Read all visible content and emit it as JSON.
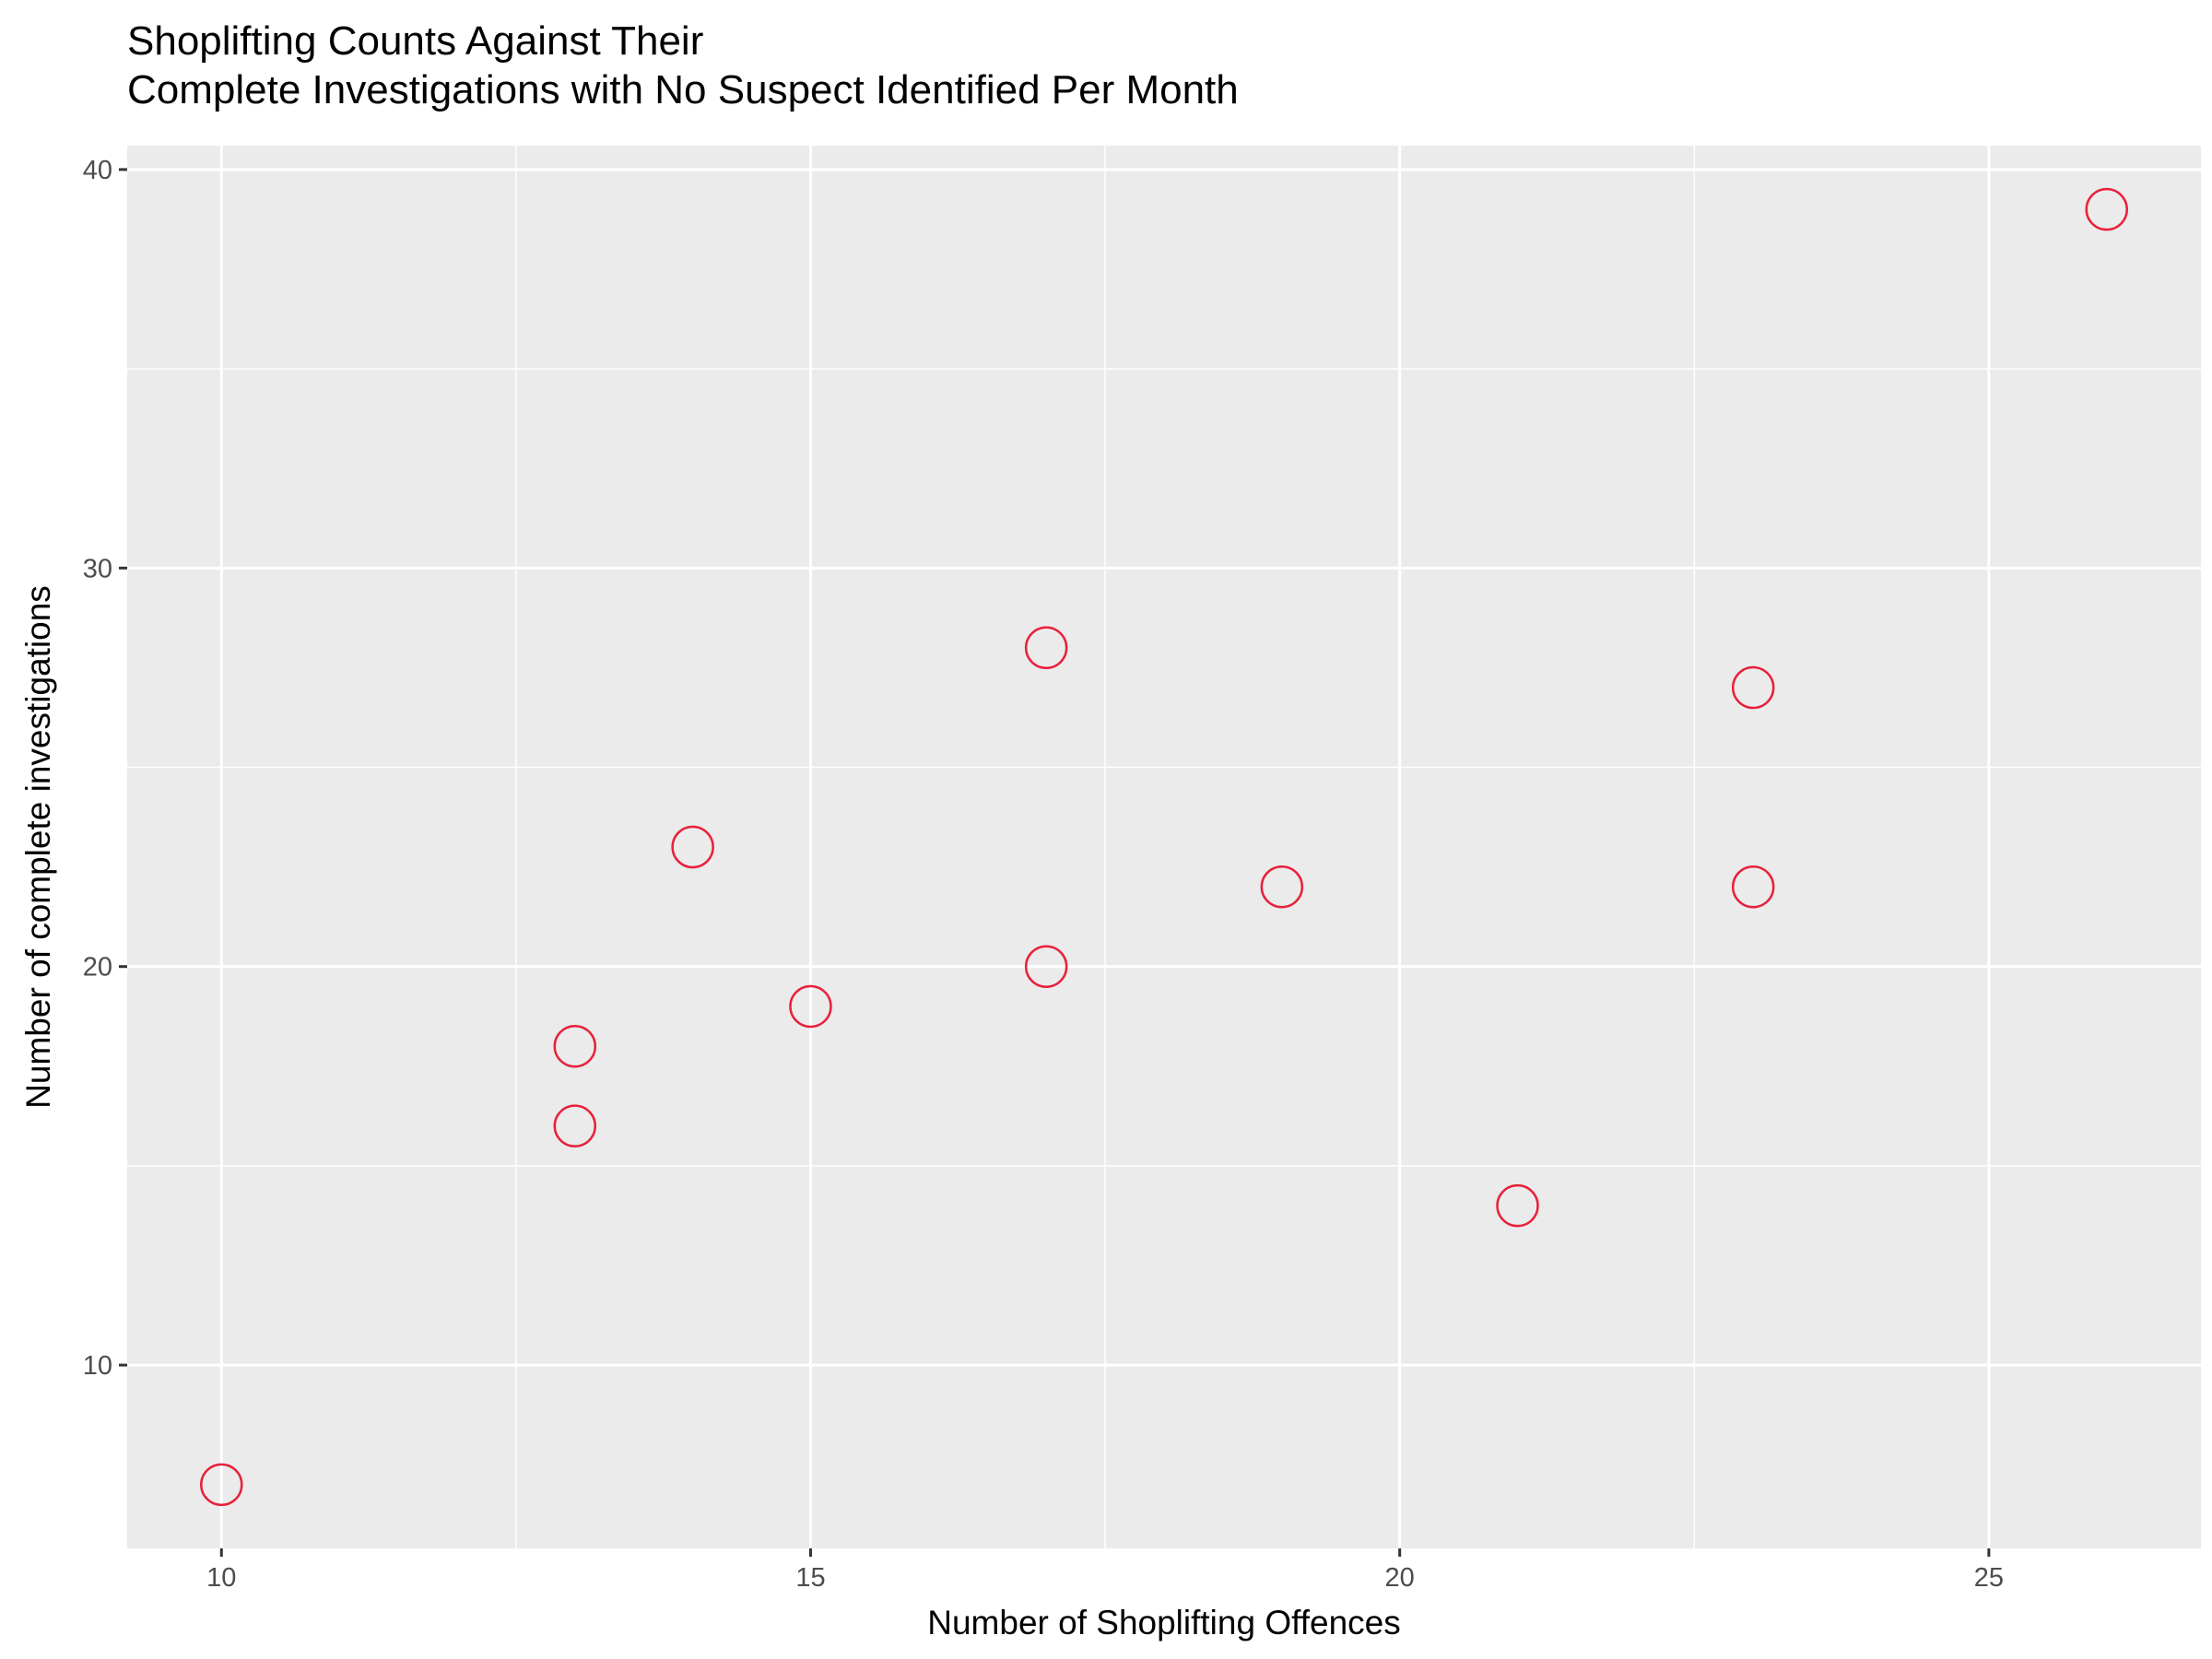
{
  "chart_data": {
    "type": "scatter",
    "title_line1": "Shoplifting Counts Against Their",
    "title_line2": "Complete Investigations with No Suspect Identified Per Month",
    "xlabel": "Number of Shoplifting Offences",
    "ylabel": "Number of complete investigations",
    "xlim": [
      9.2,
      26.8
    ],
    "ylim": [
      5.4,
      40.6
    ],
    "x_ticks": [
      10,
      15,
      20,
      25
    ],
    "y_ticks": [
      10,
      20,
      30,
      40
    ],
    "x_tick_labels": [
      "10",
      "15",
      "20",
      "25"
    ],
    "y_tick_labels": [
      "10",
      "20",
      "30",
      "40"
    ],
    "grid": true,
    "legend": "none",
    "colors": {
      "point": "#e8213a",
      "panel": "#ebebeb",
      "grid": "#ffffff",
      "tick_text": "#4d4d4d"
    },
    "points": [
      {
        "x": 10,
        "y": 7
      },
      {
        "x": 13,
        "y": 16
      },
      {
        "x": 13,
        "y": 18
      },
      {
        "x": 14,
        "y": 23
      },
      {
        "x": 15,
        "y": 19
      },
      {
        "x": 17,
        "y": 20
      },
      {
        "x": 17,
        "y": 28
      },
      {
        "x": 19,
        "y": 22
      },
      {
        "x": 21,
        "y": 14
      },
      {
        "x": 23,
        "y": 22
      },
      {
        "x": 23,
        "y": 27
      },
      {
        "x": 26,
        "y": 39
      }
    ]
  }
}
